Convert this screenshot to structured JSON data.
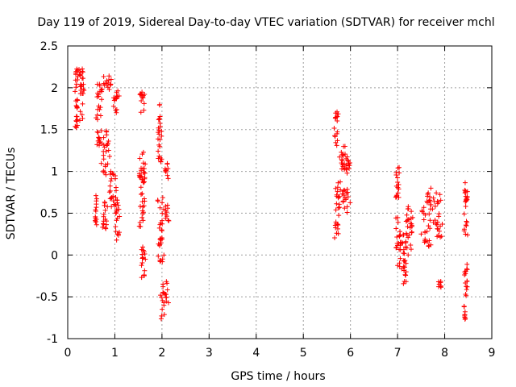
{
  "chart_data": {
    "type": "scatter",
    "title": "Day 119 of 2019, Sidereal Day-to-day VTEC variation (SDTVAR) for receiver mchl",
    "xlabel": "GPS time / hours",
    "ylabel": "SDTVAR / TECUs",
    "xlim": [
      0,
      9
    ],
    "ylim": [
      -1,
      2.5
    ],
    "xticks": [
      "0",
      "1",
      "2",
      "3",
      "4",
      "5",
      "6",
      "7",
      "8",
      "9"
    ],
    "yticks": [
      "-1",
      "-0.5",
      "0",
      "0.5",
      "1",
      "1.5",
      "2",
      "2.5"
    ],
    "grid": true,
    "marker": "+",
    "color": "#ff0000",
    "segments": [
      {
        "x0": 0.15,
        "x1": 0.22,
        "y0": 1.45,
        "y1": 2.25
      },
      {
        "x0": 0.22,
        "x1": 0.35,
        "y0": 2.1,
        "y1": 2.25
      },
      {
        "x0": 0.25,
        "x1": 0.35,
        "y0": 1.6,
        "y1": 2.05
      },
      {
        "x0": 0.58,
        "x1": 0.62,
        "y0": 0.35,
        "y1": 0.75
      },
      {
        "x0": 0.6,
        "x1": 0.75,
        "y0": 1.85,
        "y1": 2.05
      },
      {
        "x0": 0.6,
        "x1": 0.72,
        "y0": 1.3,
        "y1": 1.8
      },
      {
        "x0": 0.7,
        "x1": 0.9,
        "y0": 0.95,
        "y1": 1.5
      },
      {
        "x0": 0.75,
        "x1": 0.95,
        "y0": 1.95,
        "y1": 2.15
      },
      {
        "x0": 0.72,
        "x1": 0.85,
        "y0": 0.3,
        "y1": 0.65
      },
      {
        "x0": 0.85,
        "x1": 1.05,
        "y0": 0.55,
        "y1": 1.05
      },
      {
        "x0": 0.95,
        "x1": 1.1,
        "y0": 1.7,
        "y1": 2.0
      },
      {
        "x0": 1.0,
        "x1": 1.1,
        "y0": 0.15,
        "y1": 0.7
      },
      {
        "x0": 1.5,
        "x1": 1.65,
        "y0": 1.7,
        "y1": 1.95
      },
      {
        "x0": 1.5,
        "x1": 1.65,
        "y0": 0.3,
        "y1": 1.25
      },
      {
        "x0": 1.55,
        "x1": 1.65,
        "y0": -0.3,
        "y1": 0.1
      },
      {
        "x0": 1.6,
        "x1": 1.65,
        "y0": 0.9,
        "y1": 1.1
      },
      {
        "x0": 1.9,
        "x1": 2.0,
        "y0": 1.1,
        "y1": 1.8
      },
      {
        "x0": 1.9,
        "x1": 2.05,
        "y0": -0.1,
        "y1": 0.7
      },
      {
        "x0": 1.95,
        "x1": 2.15,
        "y0": -0.8,
        "y1": -0.3
      },
      {
        "x0": 2.05,
        "x1": 2.15,
        "y0": 0.9,
        "y1": 1.1
      },
      {
        "x0": 2.05,
        "x1": 2.15,
        "y0": 0.4,
        "y1": 0.6
      },
      {
        "x0": 5.65,
        "x1": 5.75,
        "y0": 1.3,
        "y1": 1.72
      },
      {
        "x0": 5.65,
        "x1": 5.8,
        "y0": 0.2,
        "y1": 0.9
      },
      {
        "x0": 5.75,
        "x1": 5.95,
        "y0": 1.0,
        "y1": 1.35
      },
      {
        "x0": 5.8,
        "x1": 6.0,
        "y0": 0.5,
        "y1": 0.8
      },
      {
        "x0": 5.9,
        "x1": 6.0,
        "y0": 0.9,
        "y1": 1.15
      },
      {
        "x0": 6.95,
        "x1": 7.05,
        "y0": 0.6,
        "y1": 1.05
      },
      {
        "x0": 6.95,
        "x1": 7.1,
        "y0": -0.2,
        "y1": 0.45
      },
      {
        "x0": 7.1,
        "x1": 7.2,
        "y0": -0.35,
        "y1": 0.3
      },
      {
        "x0": 7.15,
        "x1": 7.35,
        "y0": 0.0,
        "y1": 0.65
      },
      {
        "x0": 7.5,
        "x1": 7.75,
        "y0": 0.05,
        "y1": 0.6
      },
      {
        "x0": 7.6,
        "x1": 7.75,
        "y0": 0.6,
        "y1": 0.8
      },
      {
        "x0": 7.75,
        "x1": 7.95,
        "y0": 0.2,
        "y1": 0.75
      },
      {
        "x0": 7.85,
        "x1": 7.95,
        "y0": -0.4,
        "y1": -0.3
      },
      {
        "x0": 8.4,
        "x1": 8.5,
        "y0": 0.2,
        "y1": 0.9
      },
      {
        "x0": 8.4,
        "x1": 8.45,
        "y0": -0.85,
        "y1": -0.6
      },
      {
        "x0": 8.42,
        "x1": 8.5,
        "y0": -0.5,
        "y1": -0.1
      }
    ]
  }
}
